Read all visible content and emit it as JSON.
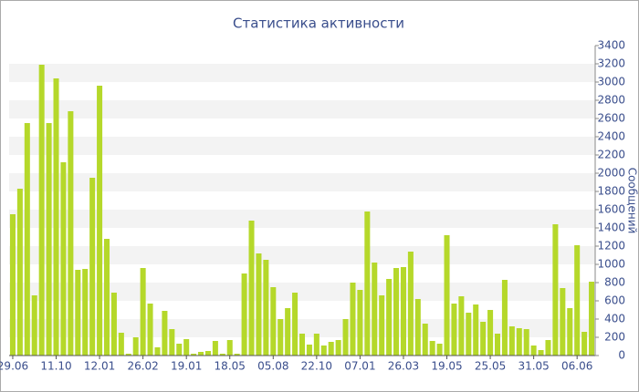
{
  "chart_data": {
    "type": "bar",
    "title": "Статистика активности",
    "y_label": "Сообщений",
    "categories": [
      "29.06",
      null,
      null,
      null,
      null,
      null,
      "11.10",
      null,
      null,
      null,
      null,
      null,
      "12.01",
      null,
      null,
      null,
      null,
      null,
      "26.02",
      null,
      null,
      null,
      null,
      null,
      "19.01",
      null,
      null,
      null,
      null,
      null,
      "18.05",
      null,
      null,
      null,
      null,
      null,
      "05.08",
      null,
      null,
      null,
      null,
      null,
      "22.10",
      null,
      null,
      null,
      null,
      null,
      "07.01",
      null,
      null,
      null,
      null,
      null,
      "26.03",
      null,
      null,
      null,
      null,
      null,
      "19.05",
      null,
      null,
      null,
      null,
      null,
      "25.05",
      null,
      null,
      null,
      null,
      null,
      "31.05",
      null,
      null,
      null,
      null,
      null,
      "06.06",
      null,
      null
    ],
    "values": [
      1550,
      1830,
      2550,
      660,
      3190,
      2550,
      3040,
      2120,
      2680,
      940,
      950,
      1950,
      2960,
      1280,
      690,
      250,
      20,
      200,
      960,
      570,
      90,
      490,
      290,
      130,
      180,
      20,
      40,
      50,
      160,
      20,
      170,
      20,
      900,
      1480,
      1120,
      1050,
      750,
      400,
      520,
      690,
      240,
      120,
      240,
      110,
      150,
      170,
      400,
      800,
      720,
      1580,
      1020,
      660,
      840,
      960,
      970,
      1140,
      620,
      350,
      160,
      130,
      1320,
      570,
      650,
      470,
      560,
      370,
      500,
      240,
      830,
      320,
      300,
      290,
      110,
      60,
      170,
      1440,
      740,
      520,
      1210,
      260,
      810
    ],
    "color": "#b5d82a",
    "ylim": [
      0,
      3400
    ],
    "yticks": [
      0,
      200,
      400,
      600,
      800,
      1000,
      1200,
      1400,
      1600,
      1800,
      2000,
      2200,
      2400,
      2600,
      2800,
      3000,
      3200,
      3400
    ],
    "grid": true
  }
}
